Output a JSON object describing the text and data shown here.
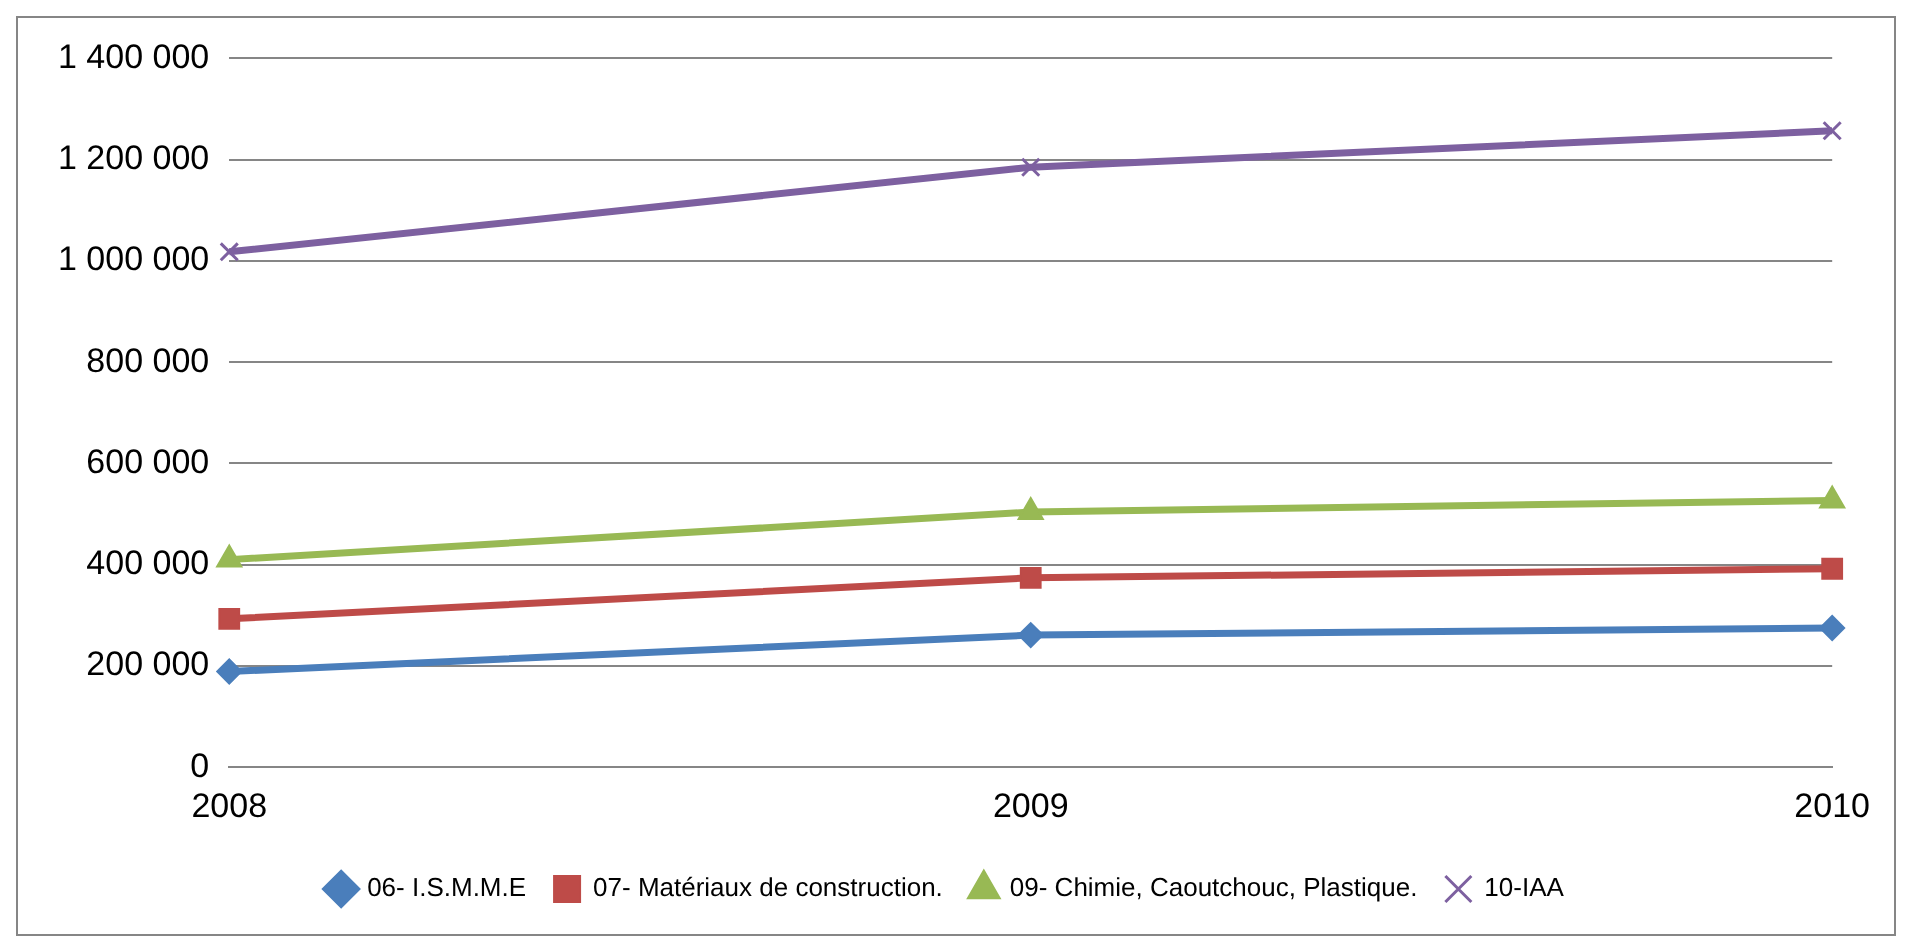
{
  "chart_data": {
    "type": "line",
    "categories": [
      "2008",
      "2009",
      "2010"
    ],
    "series": [
      {
        "name": "06- I.S.M.M.E",
        "color": "#4a7ebb",
        "marker": "diamond",
        "values": [
          189000,
          261000,
          275000
        ]
      },
      {
        "name": "07- Matériaux de construction.",
        "color": "#be4b48",
        "marker": "square",
        "values": [
          293000,
          374000,
          392000
        ]
      },
      {
        "name": "09- Chimie, Caoutchouc, Plastique.",
        "color": "#98b954",
        "marker": "triangle",
        "values": [
          410000,
          504000,
          527000
        ]
      },
      {
        "name": "10-IAA",
        "color": "#7d60a0",
        "marker": "cross",
        "values": [
          1018000,
          1185000,
          1257000
        ]
      }
    ],
    "ylim": [
      0,
      1400000
    ],
    "yticks": [
      0,
      {
        "value": 200000,
        "label": "200 000"
      },
      {
        "value": 400000,
        "label": "400 000"
      },
      {
        "value": 600000,
        "label": "600 000"
      },
      {
        "value": 800000,
        "label": "800 000"
      },
      {
        "value": 1000000,
        "label": "1 000 000"
      },
      {
        "value": 1200000,
        "label": "1 200 000"
      },
      {
        "value": 1400000,
        "label": "1 400 000"
      }
    ],
    "grid": "y",
    "legend": "bottom",
    "line_style": "solid"
  }
}
